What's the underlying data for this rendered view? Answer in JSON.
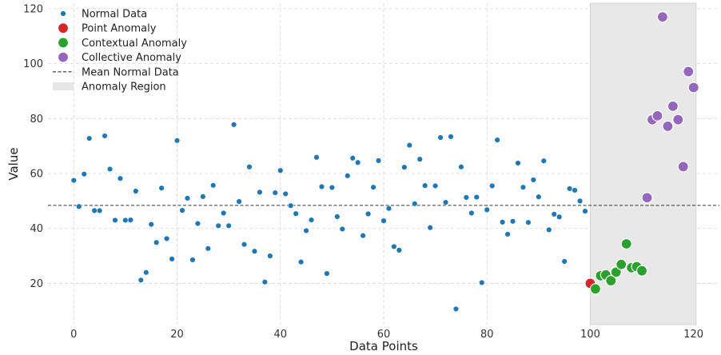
{
  "chart_data": {
    "type": "scatter",
    "title": "",
    "xlabel": "Data Points",
    "ylabel": "Value",
    "xlim": [
      -5,
      125
    ],
    "ylim": [
      5,
      122
    ],
    "xticks": [
      0,
      20,
      40,
      60,
      80,
      100,
      120
    ],
    "yticks": [
      20,
      40,
      60,
      80,
      100,
      120
    ],
    "grid": true,
    "legend_position": "top-left",
    "mean_normal": 48.4,
    "anomaly_region": [
      100,
      120.5
    ],
    "series": [
      {
        "name": "Normal Data",
        "color": "#1f77b4",
        "marker": "small-circle",
        "points": [
          [
            0,
            57.5
          ],
          [
            1,
            48.0
          ],
          [
            2,
            59.8
          ],
          [
            3,
            72.8
          ],
          [
            4,
            46.5
          ],
          [
            5,
            46.5
          ],
          [
            6,
            73.7
          ],
          [
            7,
            61.6
          ],
          [
            8,
            43.0
          ],
          [
            9,
            58.2
          ],
          [
            10,
            43.0
          ],
          [
            11,
            43.1
          ],
          [
            12,
            53.6
          ],
          [
            13,
            21.2
          ],
          [
            14,
            24.0
          ],
          [
            15,
            41.5
          ],
          [
            16,
            34.9
          ],
          [
            17,
            54.7
          ],
          [
            18,
            36.3
          ],
          [
            19,
            28.9
          ],
          [
            20,
            72.0
          ],
          [
            21,
            46.6
          ],
          [
            22,
            51.0
          ],
          [
            23,
            28.6
          ],
          [
            24,
            41.8
          ],
          [
            25,
            51.6
          ],
          [
            26,
            32.7
          ],
          [
            27,
            55.7
          ],
          [
            28,
            41.0
          ],
          [
            29,
            45.6
          ],
          [
            30,
            41.0
          ],
          [
            31,
            77.8
          ],
          [
            32,
            49.8
          ],
          [
            33,
            34.2
          ],
          [
            34,
            62.4
          ],
          [
            35,
            31.7
          ],
          [
            36,
            53.2
          ],
          [
            37,
            20.5
          ],
          [
            38,
            30.0
          ],
          [
            39,
            53.0
          ],
          [
            40,
            61.1
          ],
          [
            41,
            52.6
          ],
          [
            42,
            48.3
          ],
          [
            43,
            45.4
          ],
          [
            44,
            27.8
          ],
          [
            45,
            39.2
          ],
          [
            46,
            43.1
          ],
          [
            47,
            65.9
          ],
          [
            48,
            55.2
          ],
          [
            49,
            23.6
          ],
          [
            50,
            54.9
          ],
          [
            51,
            44.3
          ],
          [
            52,
            39.8
          ],
          [
            53,
            59.2
          ],
          [
            54,
            65.6
          ],
          [
            55,
            64.0
          ],
          [
            56,
            37.4
          ],
          [
            57,
            45.3
          ],
          [
            58,
            55.0
          ],
          [
            59,
            64.7
          ],
          [
            60,
            42.8
          ],
          [
            61,
            47.3
          ],
          [
            62,
            33.4
          ],
          [
            63,
            32.1
          ],
          [
            64,
            62.3
          ],
          [
            65,
            70.3
          ],
          [
            66,
            49.0
          ],
          [
            67,
            65.2
          ],
          [
            68,
            55.6
          ],
          [
            69,
            40.3
          ],
          [
            70,
            55.5
          ],
          [
            71,
            73.1
          ],
          [
            72,
            49.5
          ],
          [
            73,
            73.4
          ],
          [
            74,
            10.7
          ],
          [
            75,
            62.4
          ],
          [
            76,
            51.3
          ],
          [
            77,
            45.6
          ],
          [
            78,
            51.4
          ],
          [
            79,
            20.3
          ],
          [
            80,
            46.8
          ],
          [
            81,
            55.5
          ],
          [
            82,
            72.2
          ],
          [
            83,
            42.3
          ],
          [
            84,
            37.9
          ],
          [
            85,
            42.6
          ],
          [
            86,
            63.8
          ],
          [
            87,
            55.0
          ],
          [
            88,
            42.2
          ],
          [
            89,
            57.7
          ],
          [
            90,
            51.5
          ],
          [
            91,
            64.6
          ],
          [
            92,
            39.5
          ],
          [
            93,
            45.2
          ],
          [
            94,
            44.2
          ],
          [
            95,
            28.0
          ],
          [
            96,
            54.5
          ],
          [
            97,
            53.9
          ],
          [
            98,
            50.0
          ],
          [
            99,
            46.3
          ]
        ]
      },
      {
        "name": "Point Anomaly",
        "color": "#d62728",
        "marker": "large-circle",
        "points": [
          [
            100,
            20.0
          ]
        ]
      },
      {
        "name": "Contextual Anomaly",
        "color": "#2ca02c",
        "marker": "large-circle",
        "points": [
          [
            101,
            18.0
          ],
          [
            102,
            22.8
          ],
          [
            103,
            23.1
          ],
          [
            104,
            21.0
          ],
          [
            105,
            24.1
          ],
          [
            106,
            26.9
          ],
          [
            107,
            34.4
          ],
          [
            108,
            25.7
          ],
          [
            109,
            26.1
          ],
          [
            110,
            24.6
          ]
        ]
      },
      {
        "name": "Collective Anomaly",
        "color": "#9467bd",
        "marker": "large-circle",
        "points": [
          [
            111,
            51.2
          ],
          [
            112,
            79.6
          ],
          [
            113,
            81.0
          ],
          [
            114,
            117.0
          ],
          [
            115,
            77.2
          ],
          [
            116,
            84.5
          ],
          [
            117,
            79.6
          ],
          [
            118,
            62.5
          ],
          [
            119,
            97.1
          ],
          [
            120,
            91.3
          ]
        ]
      }
    ],
    "legend": [
      {
        "label": "Normal Data",
        "kind": "small-dot",
        "color": "#1f77b4"
      },
      {
        "label": "Point Anomaly",
        "kind": "large-dot",
        "color": "#d62728"
      },
      {
        "label": "Contextual Anomaly",
        "kind": "large-dot",
        "color": "#2ca02c"
      },
      {
        "label": "Collective Anomaly",
        "kind": "large-dot",
        "color": "#9467bd"
      },
      {
        "label": "Mean Normal Data",
        "kind": "dashed-line",
        "color": "#333333"
      },
      {
        "label": "Anomaly Region",
        "kind": "patch",
        "color": "#e6e6e6"
      }
    ]
  }
}
